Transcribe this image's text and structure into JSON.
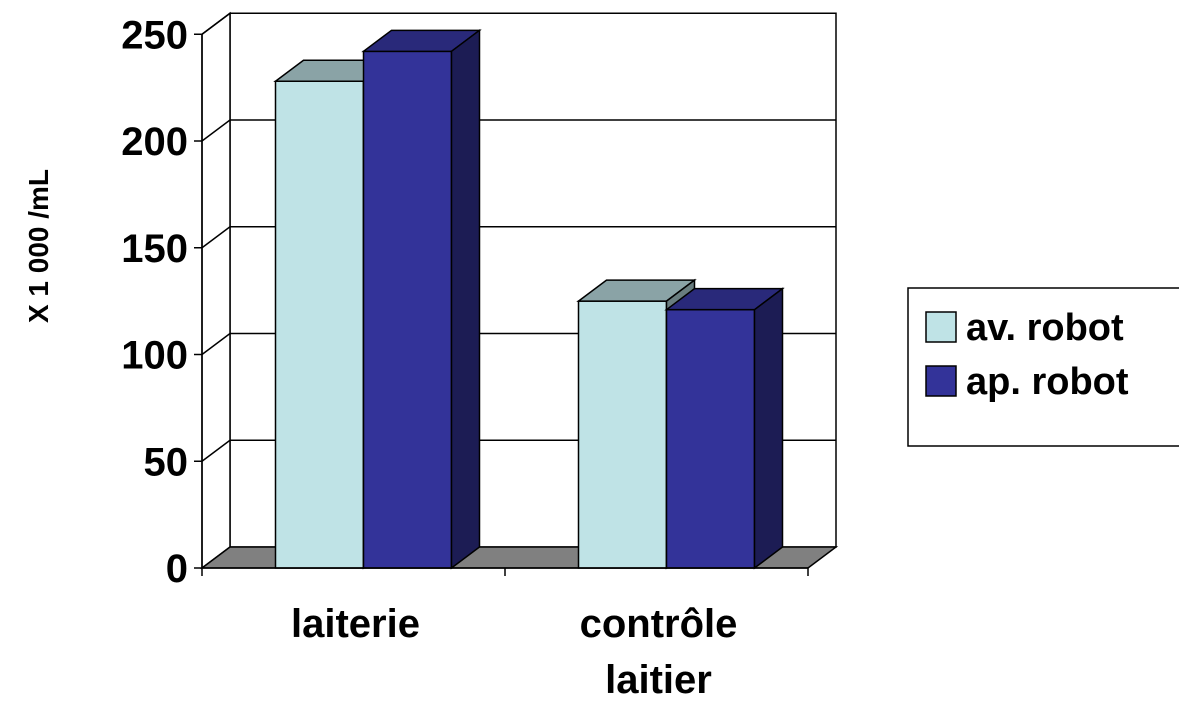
{
  "chart_data": {
    "type": "bar",
    "style": "3d-clustered",
    "title": "",
    "xlabel": "",
    "ylabel": "X 1 000 /mL",
    "ylim": [
      0,
      250
    ],
    "yticks": [
      "0",
      "50",
      "100",
      "150",
      "200",
      "250"
    ],
    "categories": [
      {
        "lines": [
          "laiterie"
        ]
      },
      {
        "lines": [
          "contrôle",
          "laitier"
        ]
      }
    ],
    "series": [
      {
        "name": "av. robot",
        "values": [
          228,
          125
        ],
        "color": "#bfe3e6"
      },
      {
        "name": "ap. robot",
        "values": [
          242,
          121
        ],
        "color": "#333399"
      }
    ],
    "grid": true,
    "legend": "right"
  }
}
